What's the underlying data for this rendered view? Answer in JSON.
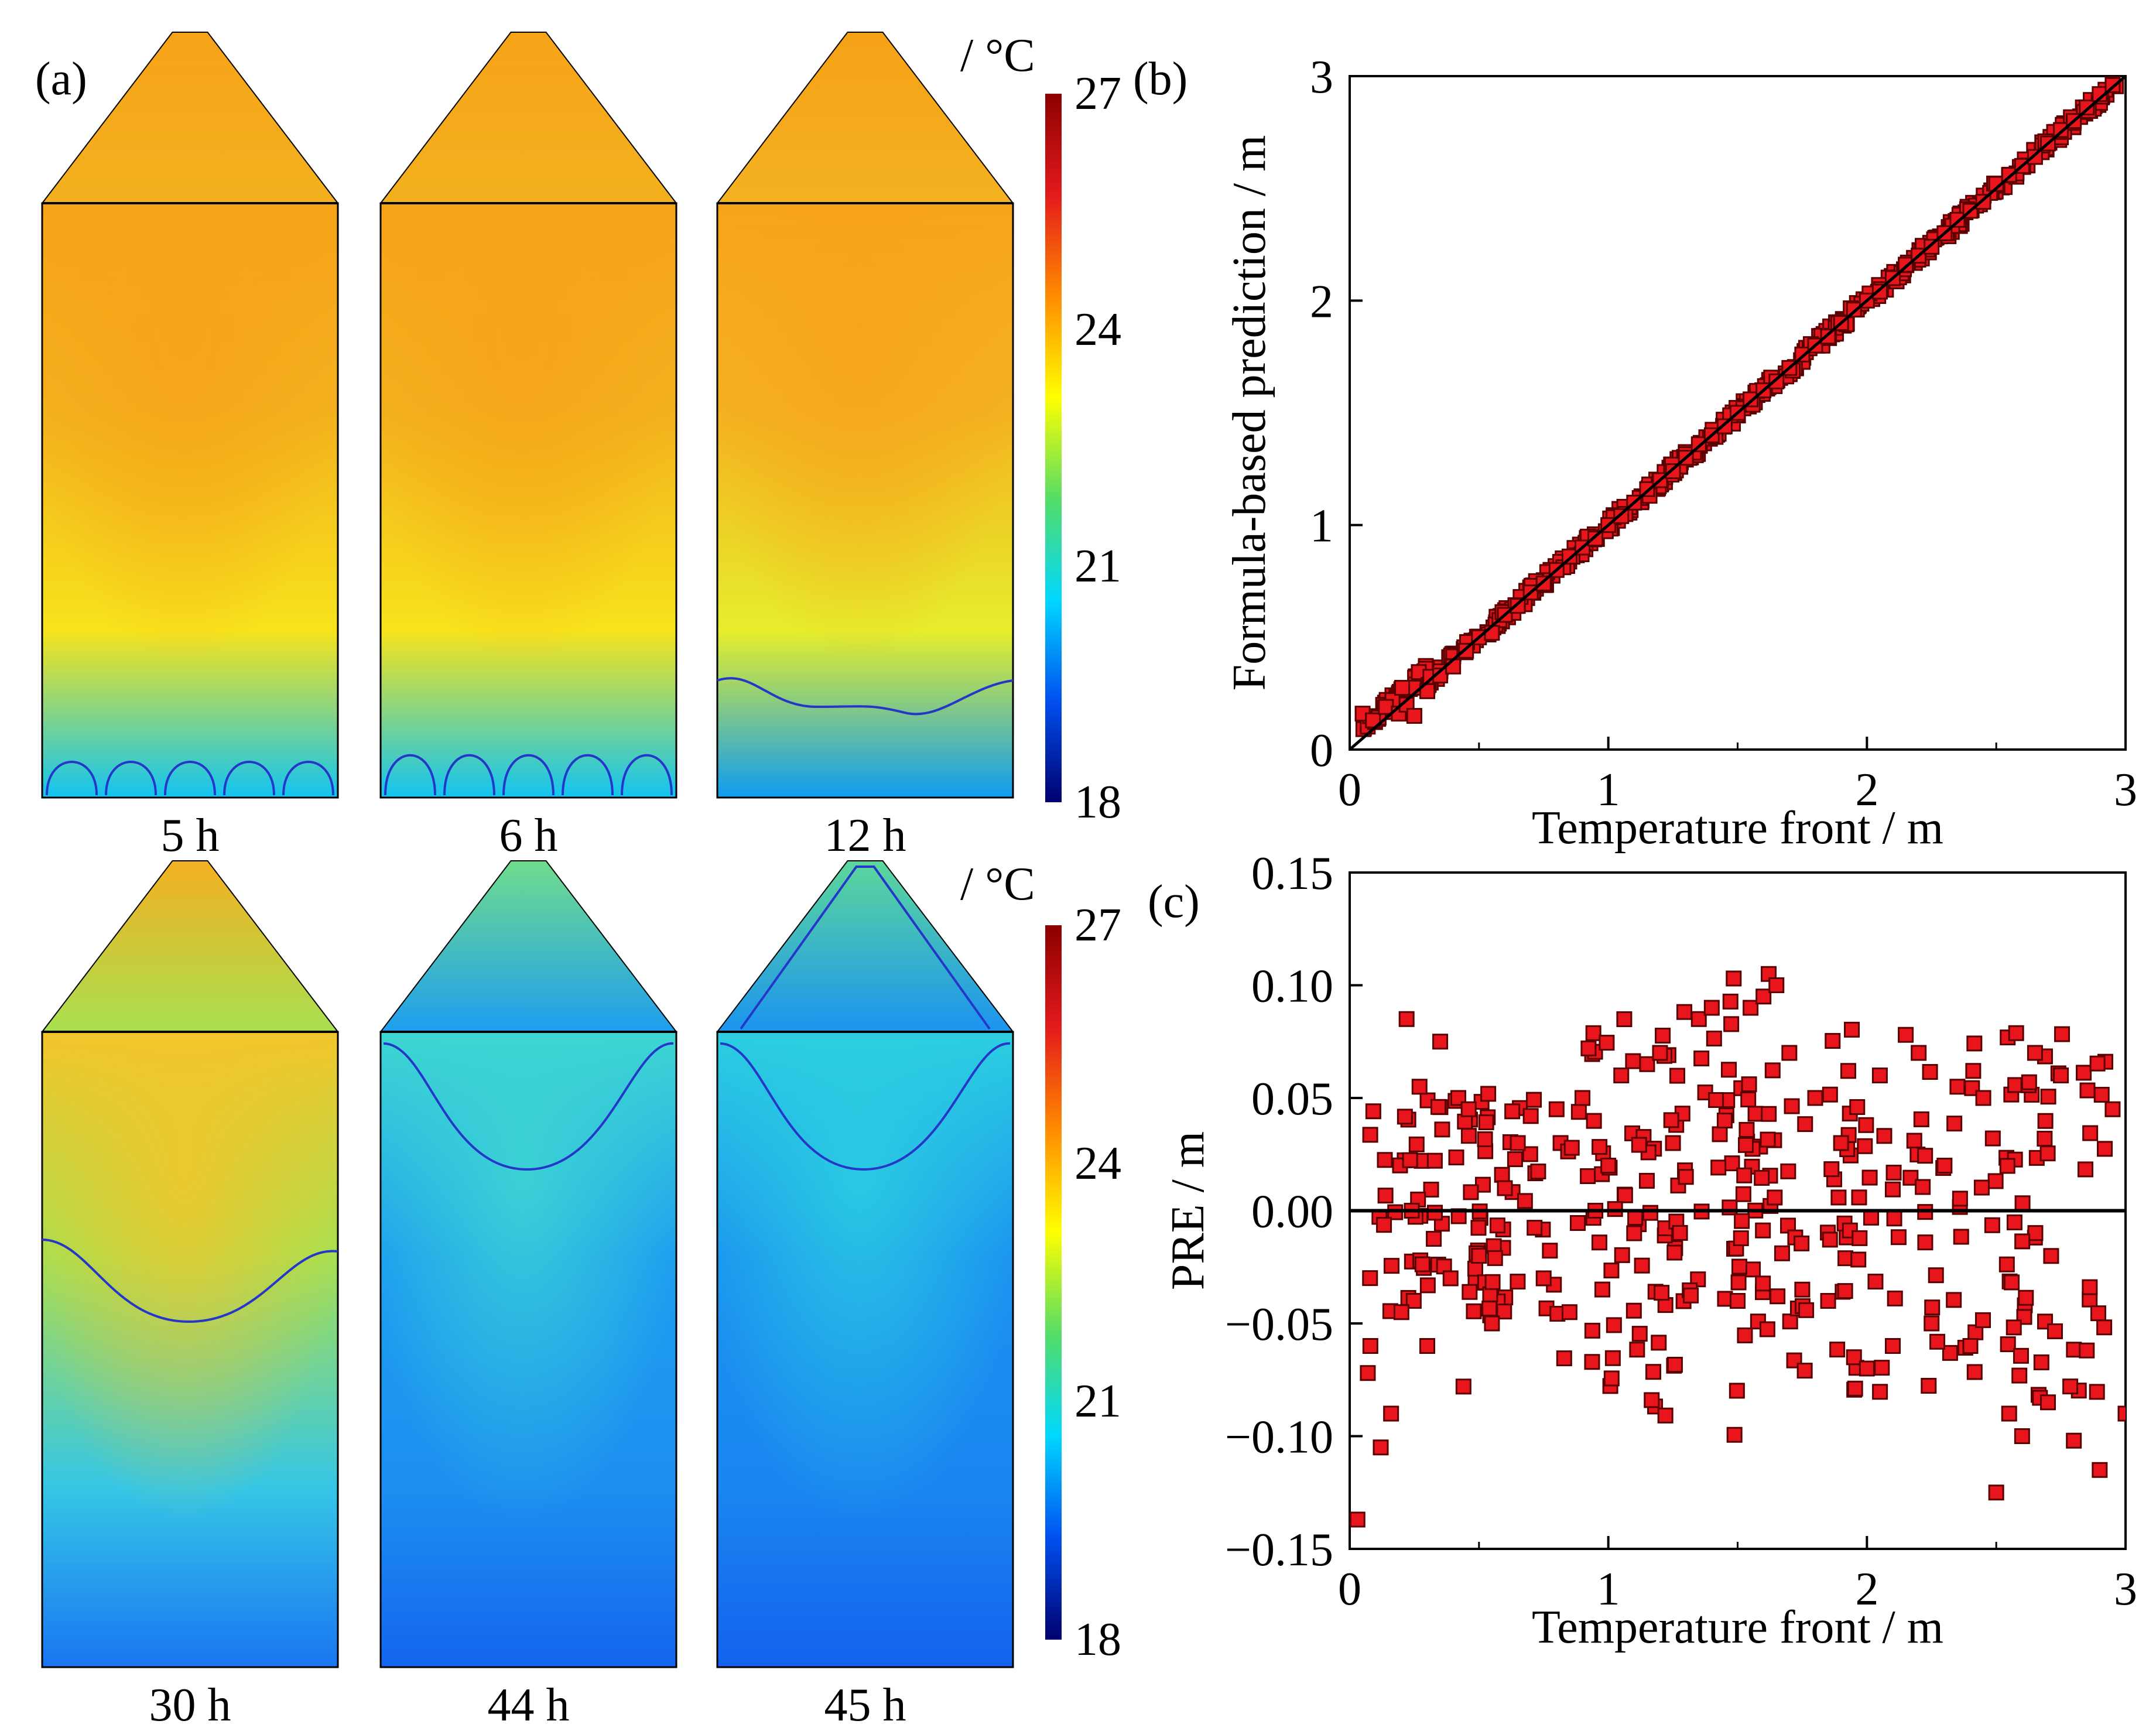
{
  "panels": {
    "a": "(a)",
    "b": "(b)",
    "c": "(c)"
  },
  "colors": {
    "marker_fill": "#e8161c",
    "marker_edge": "#5a0000",
    "isoline": "#2437c8",
    "outline": "#000000"
  },
  "thermal_maps": {
    "unit_label": "/ °C",
    "colorbar": {
      "ticks": [
        "27",
        "24",
        "21",
        "18"
      ],
      "range": [
        18,
        27
      ],
      "stops": [
        "#8b0000",
        "#e41a1c",
        "#ff8c00",
        "#ffff00",
        "#55dd66",
        "#00d8ff",
        "#0050f0",
        "#00006e"
      ]
    },
    "frames": [
      {
        "time": "5 h",
        "row": 0,
        "col": 0,
        "core": "#f6a317",
        "mid": "#f3b11e",
        "upper": "#f7e31c",
        "bottom": "#12c4f2",
        "tip": "#f6a317",
        "isoline_shape": "arches5"
      },
      {
        "time": "6 h",
        "row": 0,
        "col": 1,
        "core": "#f6a317",
        "mid": "#f3b11e",
        "upper": "#f7e31c",
        "bottom": "#12c4f2",
        "tip": "#f6a317",
        "isoline_shape": "arches5b"
      },
      {
        "time": "12 h",
        "row": 0,
        "col": 2,
        "core": "#f7a41a",
        "mid": "#f4b220",
        "upper": "#e6ee2c",
        "bottom": "#0e9cf1",
        "tip": "#f5a116",
        "isoline_shape": "wave"
      },
      {
        "time": "30 h",
        "row": 1,
        "col": 0,
        "core": "#f2c52a",
        "mid": "#a8e050",
        "upper": "#35c6e6",
        "bottom": "#1976f2",
        "tip": "#f3b022",
        "isoline_shape": "trough_low"
      },
      {
        "time": "44 h",
        "row": 1,
        "col": 1,
        "core": "#3ed7d2",
        "mid": "#1e9ef0",
        "upper": "#1c8ff0",
        "bottom": "#1565ee",
        "tip": "#70dc8c",
        "isoline_shape": "trough_high"
      },
      {
        "time": "45 h",
        "row": 1,
        "col": 2,
        "core": "#2ccfe0",
        "mid": "#1b94f0",
        "upper": "#1a86f0",
        "bottom": "#1462ee",
        "tip": "#5cd79a",
        "isoline_shape": "trough_high_cone"
      }
    ]
  },
  "chart_data": [
    {
      "panel": "(b)",
      "type": "scatter",
      "xlabel": "Temperature front / m",
      "ylabel": "Formula-based prediction / m",
      "xlim": [
        0,
        3
      ],
      "ylim": [
        0,
        3
      ],
      "xticks": [
        0,
        1,
        2,
        3
      ],
      "yticks": [
        0,
        1,
        2,
        3
      ],
      "xtick_labels": [
        "0",
        "1",
        "2",
        "3"
      ],
      "ytick_labels": [
        "0",
        "1",
        "2",
        "3"
      ],
      "reference_line": {
        "from": [
          0,
          0
        ],
        "to": [
          3,
          3
        ]
      },
      "points": [
        [
          0.05,
          0.16
        ],
        [
          0.09,
          0.13
        ],
        [
          0.14,
          0.19
        ],
        [
          0.19,
          0.16
        ],
        [
          0.22,
          0.2
        ],
        [
          0.25,
          0.15
        ],
        [
          0.3,
          0.26
        ],
        [
          0.35,
          0.33
        ],
        [
          0.4,
          0.37
        ],
        [
          0.45,
          0.44
        ],
        [
          0.5,
          0.5
        ],
        [
          0.55,
          0.52
        ],
        [
          0.6,
          0.6
        ],
        [
          0.65,
          0.64
        ],
        [
          0.7,
          0.7
        ],
        [
          0.75,
          0.74
        ],
        [
          0.8,
          0.8
        ],
        [
          0.85,
          0.86
        ],
        [
          0.9,
          0.9
        ],
        [
          0.95,
          0.94
        ],
        [
          1.0,
          1.0
        ],
        [
          1.05,
          1.04
        ],
        [
          1.1,
          1.1
        ],
        [
          1.15,
          1.16
        ],
        [
          1.2,
          1.2
        ],
        [
          1.25,
          1.24
        ],
        [
          1.3,
          1.3
        ],
        [
          1.35,
          1.36
        ],
        [
          1.4,
          1.4
        ],
        [
          1.45,
          1.44
        ],
        [
          1.5,
          1.5
        ],
        [
          1.55,
          1.56
        ],
        [
          1.6,
          1.6
        ],
        [
          1.65,
          1.64
        ],
        [
          1.7,
          1.7
        ],
        [
          1.75,
          1.76
        ],
        [
          1.8,
          1.8
        ],
        [
          1.85,
          1.84
        ],
        [
          1.9,
          1.9
        ],
        [
          1.95,
          1.96
        ],
        [
          2.0,
          2.0
        ],
        [
          2.05,
          2.04
        ],
        [
          2.1,
          2.1
        ],
        [
          2.15,
          2.16
        ],
        [
          2.2,
          2.2
        ],
        [
          2.25,
          2.24
        ],
        [
          2.3,
          2.3
        ],
        [
          2.35,
          2.36
        ],
        [
          2.4,
          2.4
        ],
        [
          2.45,
          2.44
        ],
        [
          2.5,
          2.52
        ],
        [
          2.55,
          2.56
        ],
        [
          2.6,
          2.6
        ],
        [
          2.65,
          2.64
        ],
        [
          2.7,
          2.7
        ],
        [
          2.75,
          2.76
        ],
        [
          2.8,
          2.8
        ],
        [
          2.85,
          2.86
        ],
        [
          2.9,
          2.92
        ],
        [
          2.95,
          2.96
        ]
      ],
      "dense_cloud": {
        "band_width": 0.06
      }
    },
    {
      "panel": "(c)",
      "type": "scatter",
      "xlabel": "Temperature front / m",
      "ylabel": "PRE / m",
      "xlim": [
        0,
        3
      ],
      "ylim": [
        -0.15,
        0.15
      ],
      "xticks": [
        0,
        1,
        2,
        3
      ],
      "yticks": [
        0.15,
        0.1,
        0.05,
        0.0,
        -0.05,
        -0.1,
        -0.15
      ],
      "xtick_labels": [
        "0",
        "1",
        "2",
        "3"
      ],
      "ytick_labels": [
        "0.15",
        "0.10",
        "0.05",
        "0.00",
        "−0.05",
        "−0.10",
        "−0.15"
      ],
      "reference_line": {
        "y": 0
      },
      "points": [
        [
          0.03,
          -0.137
        ],
        [
          0.07,
          -0.072
        ],
        [
          0.08,
          -0.06
        ],
        [
          0.12,
          -0.105
        ],
        [
          0.16,
          -0.09
        ],
        [
          0.2,
          -0.045
        ],
        [
          0.22,
          0.085
        ],
        [
          0.24,
          0.0
        ],
        [
          0.27,
          0.055
        ],
        [
          0.3,
          -0.06
        ],
        [
          0.35,
          0.075
        ],
        [
          0.39,
          -0.03
        ],
        [
          0.42,
          0.05
        ],
        [
          0.44,
          -0.078
        ],
        [
          0.46,
          0.045
        ],
        [
          0.5,
          -0.02
        ],
        [
          0.55,
          -0.05
        ],
        [
          0.6,
          0.01
        ],
        [
          0.65,
          0.03
        ],
        [
          0.7,
          0.042
        ],
        [
          0.75,
          -0.03
        ],
        [
          0.8,
          0.045
        ],
        [
          0.85,
          -0.045
        ],
        [
          0.9,
          0.05
        ],
        [
          0.95,
          0.0
        ],
        [
          1.0,
          0.02
        ],
        [
          1.05,
          0.06
        ],
        [
          1.1,
          -0.01
        ],
        [
          1.15,
          0.065
        ],
        [
          1.2,
          0.07
        ],
        [
          1.25,
          0.03
        ],
        [
          1.3,
          0.015
        ],
        [
          1.35,
          0.085
        ],
        [
          1.4,
          0.09
        ],
        [
          1.45,
          0.04
        ],
        [
          1.5,
          -0.04
        ],
        [
          1.55,
          0.09
        ],
        [
          1.6,
          0.095
        ],
        [
          1.62,
          0.105
        ],
        [
          1.65,
          0.1
        ],
        [
          1.7,
          0.07
        ],
        [
          1.75,
          -0.035
        ],
        [
          1.8,
          0.05
        ],
        [
          1.85,
          -0.04
        ],
        [
          1.9,
          0.03
        ],
        [
          1.95,
          -0.065
        ],
        [
          2.0,
          -0.07
        ],
        [
          2.05,
          0.06
        ],
        [
          2.1,
          -0.06
        ],
        [
          2.15,
          0.078
        ],
        [
          2.2,
          0.07
        ],
        [
          2.25,
          -0.05
        ],
        [
          2.3,
          0.02
        ],
        [
          2.35,
          0.055
        ],
        [
          2.4,
          -0.06
        ],
        [
          2.45,
          0.05
        ],
        [
          2.5,
          -0.125
        ],
        [
          2.55,
          -0.09
        ],
        [
          2.6,
          -0.1
        ],
        [
          2.65,
          0.07
        ],
        [
          2.7,
          -0.085
        ],
        [
          2.75,
          0.06
        ],
        [
          2.8,
          -0.102
        ],
        [
          2.85,
          -0.062
        ],
        [
          2.9,
          -0.115
        ],
        [
          2.95,
          0.045
        ],
        [
          3.0,
          -0.09
        ]
      ],
      "dense_cloud": {
        "count": 360
      }
    }
  ]
}
